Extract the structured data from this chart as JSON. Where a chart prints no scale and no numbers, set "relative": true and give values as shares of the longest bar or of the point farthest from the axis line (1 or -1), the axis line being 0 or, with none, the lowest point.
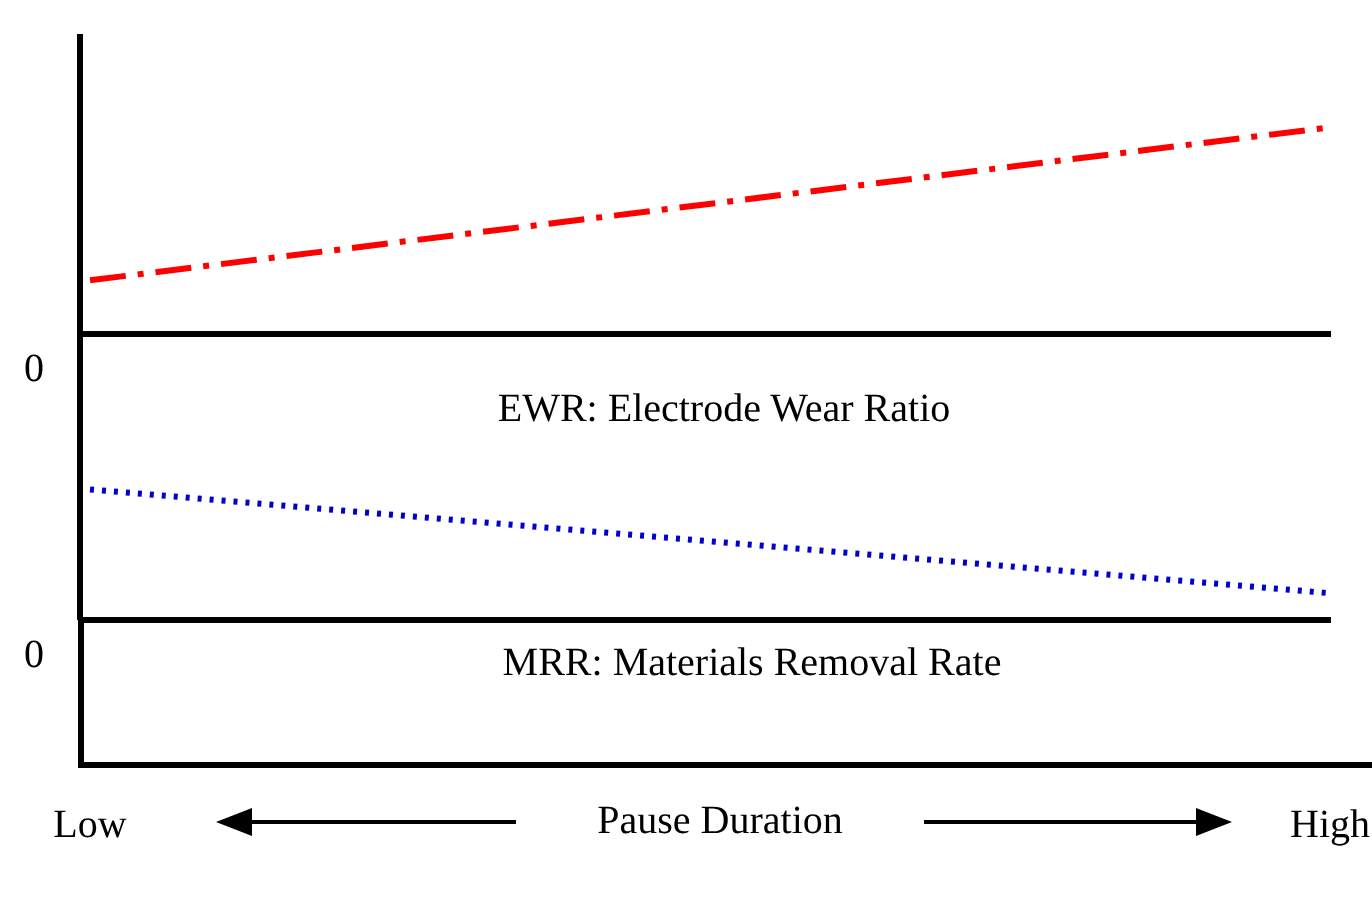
{
  "chart_data": [
    {
      "type": "line",
      "relative": true,
      "categories": [
        null,
        null
      ],
      "tick_labels": false,
      "annotations": [
        "0"
      ],
      "series": [
        {
          "color": "#ff0000",
          "values": [
            0.26,
            1
          ],
          "line_style": "dashed"
        }
      ]
    },
    {
      "type": "line",
      "relative": true,
      "categories": [
        "Low",
        "High"
      ],
      "xlabel": "Pause Duration",
      "annotations": [
        "0",
        "EWR: Electrode Wear Ratio",
        "MRR: Materials Removal Rate"
      ],
      "series": [
        {
          "color": "#0000cc",
          "values": [
            1,
            0.205
          ],
          "line_style": "dotted"
        }
      ]
    }
  ]
}
